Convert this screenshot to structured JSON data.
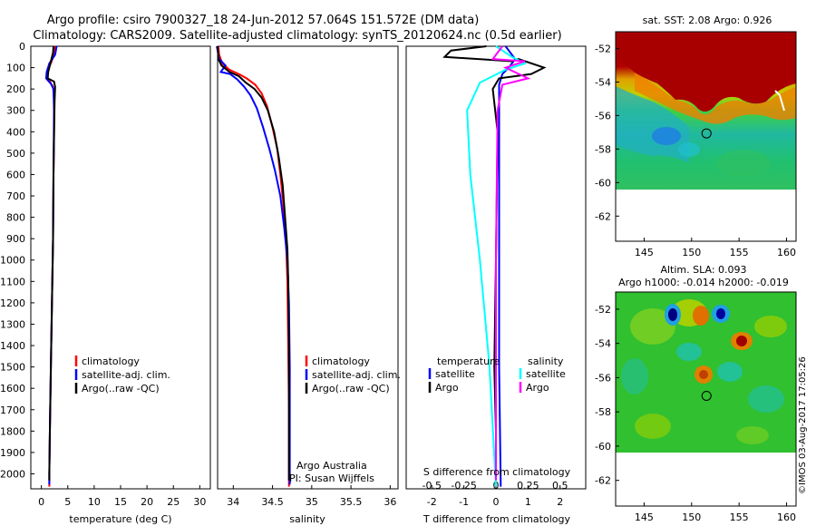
{
  "header": {
    "line1": "Argo profile: csiro 7900327_18 24-Jun-2012 57.064S 151.572E (DM data)",
    "line2": "Climatology: CARS2009. Satellite-adjusted climatology: synTS_20120624.nc (0.5d earlier)"
  },
  "colors": {
    "climatology": "#ff0000",
    "satellite": "#0000ff",
    "argo": "#000000",
    "salinity_satellite": "#00ffff",
    "salinity_argo": "#ff00ff"
  },
  "chart_data": [
    {
      "type": "line",
      "panel": "temperature",
      "xlabel": "temperature (deg C)",
      "ylabel": "",
      "xlim": [
        -2,
        32
      ],
      "ylim": [
        2070,
        0
      ],
      "xticks": [
        "0",
        "5",
        "10",
        "15",
        "20",
        "25",
        "30"
      ],
      "yticks": [
        "0",
        "100",
        "200",
        "300",
        "400",
        "500",
        "600",
        "700",
        "800",
        "900",
        "1000",
        "1100",
        "1200",
        "1300",
        "1400",
        "1500",
        "1600",
        "1700",
        "1800",
        "1900",
        "2000"
      ],
      "legend": [
        "climatology",
        "satellite-adj. clim.",
        "Argo(..raw -QC)"
      ],
      "series": [
        {
          "name": "climatology",
          "color": "#ff0000",
          "points": [
            [
              2.6,
              0
            ],
            [
              2.4,
              40
            ],
            [
              1.8,
              80
            ],
            [
              1.2,
              110
            ],
            [
              1.0,
              140
            ],
            [
              1.6,
              165
            ],
            [
              2.2,
              190
            ],
            [
              2.4,
              250
            ],
            [
              2.4,
              400
            ],
            [
              2.3,
              600
            ],
            [
              2.2,
              900
            ],
            [
              2.0,
              1200
            ],
            [
              1.8,
              1500
            ],
            [
              1.6,
              1800
            ],
            [
              1.5,
              2000
            ],
            [
              1.5,
              2060
            ]
          ]
        },
        {
          "name": "satellite-adj. clim.",
          "color": "#0000ff",
          "points": [
            [
              2.9,
              0
            ],
            [
              2.6,
              40
            ],
            [
              1.5,
              80
            ],
            [
              1.0,
              120
            ],
            [
              0.9,
              150
            ],
            [
              1.8,
              175
            ],
            [
              2.3,
              200
            ],
            [
              2.4,
              300
            ],
            [
              2.3,
              600
            ],
            [
              2.2,
              900
            ],
            [
              2.0,
              1200
            ],
            [
              1.8,
              1500
            ],
            [
              1.6,
              1800
            ],
            [
              1.5,
              2000
            ],
            [
              1.5,
              2050
            ]
          ]
        },
        {
          "name": "Argo(..raw -QC)",
          "color": "#000000",
          "points": [
            [
              2.3,
              0
            ],
            [
              2.2,
              30
            ],
            [
              1.9,
              60
            ],
            [
              1.6,
              90
            ],
            [
              1.3,
              120
            ],
            [
              1.2,
              150
            ],
            [
              2.4,
              165
            ],
            [
              2.6,
              190
            ],
            [
              2.5,
              260
            ],
            [
              2.4,
              420
            ],
            [
              2.3,
              600
            ],
            [
              2.2,
              900
            ],
            [
              2.0,
              1200
            ],
            [
              1.8,
              1500
            ],
            [
              1.6,
              1800
            ],
            [
              1.5,
              2000
            ],
            [
              1.5,
              2030
            ]
          ]
        }
      ]
    },
    {
      "type": "line",
      "panel": "salinity",
      "xlabel": "salinity",
      "ylabel": "",
      "xlim": [
        33.8,
        36.1
      ],
      "ylim": [
        2070,
        0
      ],
      "xticks": [
        "34",
        "34.5",
        "35",
        "35.5",
        "36"
      ],
      "legend": [
        "climatology",
        "satellite-adj. clim.",
        "Argo(..raw -QC)"
      ],
      "annotation": [
        "Argo Australia",
        "PI: Susan Wijffels"
      ],
      "series": [
        {
          "name": "climatology",
          "color": "#ff0000",
          "points": [
            [
              33.81,
              0
            ],
            [
              33.82,
              40
            ],
            [
              33.86,
              80
            ],
            [
              33.95,
              110
            ],
            [
              34.07,
              130
            ],
            [
              34.17,
              150
            ],
            [
              34.28,
              180
            ],
            [
              34.36,
              220
            ],
            [
              34.43,
              280
            ],
            [
              34.5,
              380
            ],
            [
              34.56,
              480
            ],
            [
              34.6,
              600
            ],
            [
              34.64,
              750
            ],
            [
              34.67,
              900
            ],
            [
              34.69,
              1100
            ],
            [
              34.7,
              1400
            ],
            [
              34.71,
              1700
            ],
            [
              34.71,
              2000
            ],
            [
              34.71,
              2060
            ]
          ]
        },
        {
          "name": "satellite-adj. clim.",
          "color": "#0000ff",
          "points": [
            [
              33.79,
              0
            ],
            [
              33.82,
              60
            ],
            [
              33.9,
              90
            ],
            [
              33.84,
              120
            ],
            [
              33.96,
              130
            ],
            [
              34.05,
              155
            ],
            [
              34.14,
              190
            ],
            [
              34.22,
              230
            ],
            [
              34.3,
              290
            ],
            [
              34.38,
              380
            ],
            [
              34.46,
              480
            ],
            [
              34.53,
              580
            ],
            [
              34.6,
              700
            ],
            [
              34.65,
              850
            ],
            [
              34.69,
              1000
            ],
            [
              34.71,
              1200
            ],
            [
              34.72,
              1500
            ],
            [
              34.72,
              1800
            ],
            [
              34.72,
              2000
            ],
            [
              34.72,
              2050
            ]
          ]
        },
        {
          "name": "Argo(..raw -QC)",
          "color": "#000000",
          "points": [
            [
              33.8,
              0
            ],
            [
              33.81,
              60
            ],
            [
              33.85,
              90
            ],
            [
              33.95,
              120
            ],
            [
              34.07,
              140
            ],
            [
              34.16,
              170
            ],
            [
              34.27,
              200
            ],
            [
              34.36,
              240
            ],
            [
              34.44,
              300
            ],
            [
              34.52,
              400
            ],
            [
              34.58,
              520
            ],
            [
              34.63,
              650
            ],
            [
              34.66,
              800
            ],
            [
              34.69,
              950
            ],
            [
              34.7,
              1100
            ],
            [
              34.71,
              1400
            ],
            [
              34.71,
              1700
            ],
            [
              34.71,
              2000
            ],
            [
              34.71,
              2030
            ]
          ]
        }
      ]
    },
    {
      "type": "line",
      "panel": "differences",
      "xlabel": "T difference from climatology",
      "x2label": "S difference from climatology",
      "xlim": [
        -2.8,
        2.8
      ],
      "ylim": [
        2070,
        0
      ],
      "xticks": [
        "-2",
        "-1",
        "0",
        "1",
        "2"
      ],
      "x2ticks": [
        "-0.5",
        "-0.25",
        "0",
        "0.25",
        "0.5"
      ],
      "legend_temperature": {
        "title": "temperature",
        "items": [
          "satellite",
          "Argo"
        ]
      },
      "legend_salinity": {
        "title": "salinity",
        "items": [
          "satellite",
          "Argo"
        ]
      },
      "series": [
        {
          "name": "satellite",
          "group": "temperature",
          "color": "#0000ff",
          "points": [
            [
              0.3,
              0
            ],
            [
              0.6,
              60
            ],
            [
              0.4,
              100
            ],
            [
              0.2,
              130
            ],
            [
              0.1,
              180
            ],
            [
              0.1,
              300
            ],
            [
              0.1,
              800
            ],
            [
              0.1,
              1500
            ],
            [
              0.15,
              2060
            ]
          ]
        },
        {
          "name": "Argo",
          "group": "temperature",
          "color": "#000000",
          "points": [
            [
              -0.3,
              0
            ],
            [
              -1.4,
              20
            ],
            [
              -1.6,
              50
            ],
            [
              0.5,
              70
            ],
            [
              0.7,
              60
            ],
            [
              1.5,
              100
            ],
            [
              1.1,
              130
            ],
            [
              0.1,
              150
            ],
            [
              -0.1,
              200
            ],
            [
              0.05,
              400
            ],
            [
              0.0,
              1000
            ],
            [
              -0.05,
              1500
            ],
            [
              0.0,
              1800
            ],
            [
              0.0,
              2030
            ]
          ]
        },
        {
          "name": "satellite",
          "group": "salinity",
          "color": "#00ffff",
          "points": [
            [
              0.0,
              0
            ],
            [
              0.5,
              50
            ],
            [
              0.9,
              80
            ],
            [
              0.3,
              110
            ],
            [
              -0.5,
              170
            ],
            [
              -0.9,
              300
            ],
            [
              -0.8,
              600
            ],
            [
              -0.5,
              1000
            ],
            [
              -0.2,
              1500
            ],
            [
              0.0,
              2060
            ]
          ]
        },
        {
          "name": "Argo",
          "group": "salinity",
          "color": "#ff00ff",
          "points": [
            [
              0.2,
              0
            ],
            [
              -0.1,
              60
            ],
            [
              0.9,
              70
            ],
            [
              0.3,
              100
            ],
            [
              1.0,
              150
            ],
            [
              0.2,
              180
            ],
            [
              0.05,
              300
            ],
            [
              0.0,
              1000
            ],
            [
              0.0,
              1800
            ],
            [
              0.0,
              2030
            ]
          ]
        }
      ]
    },
    {
      "type": "heatmap",
      "panel": "sst_map",
      "title": "sat. SST: 2.08  Argo: 0.926",
      "xlim": [
        142,
        161
      ],
      "ylim": [
        -63.5,
        -51
      ],
      "xticks": [
        "145",
        "150",
        "155",
        "160"
      ],
      "yticks": [
        "-52",
        "-54",
        "-56",
        "-58",
        "-60",
        "-62"
      ],
      "marker": {
        "lon": 151.572,
        "lat": -57.064
      }
    },
    {
      "type": "heatmap",
      "panel": "sla_map",
      "title": "Altim. SLA: 0.093",
      "subtitle": "Argo h1000: -0.014  h2000: -0.019",
      "xlim": [
        142,
        161
      ],
      "ylim": [
        -63.5,
        -51
      ],
      "xticks": [
        "145",
        "150",
        "155",
        "160"
      ],
      "yticks": [
        "-52",
        "-54",
        "-56",
        "-58",
        "-60",
        "-62"
      ],
      "marker": {
        "lon": 151.572,
        "lat": -57.064
      }
    }
  ],
  "stamp": "©IMOS 03-Aug-2017 17:05:26"
}
